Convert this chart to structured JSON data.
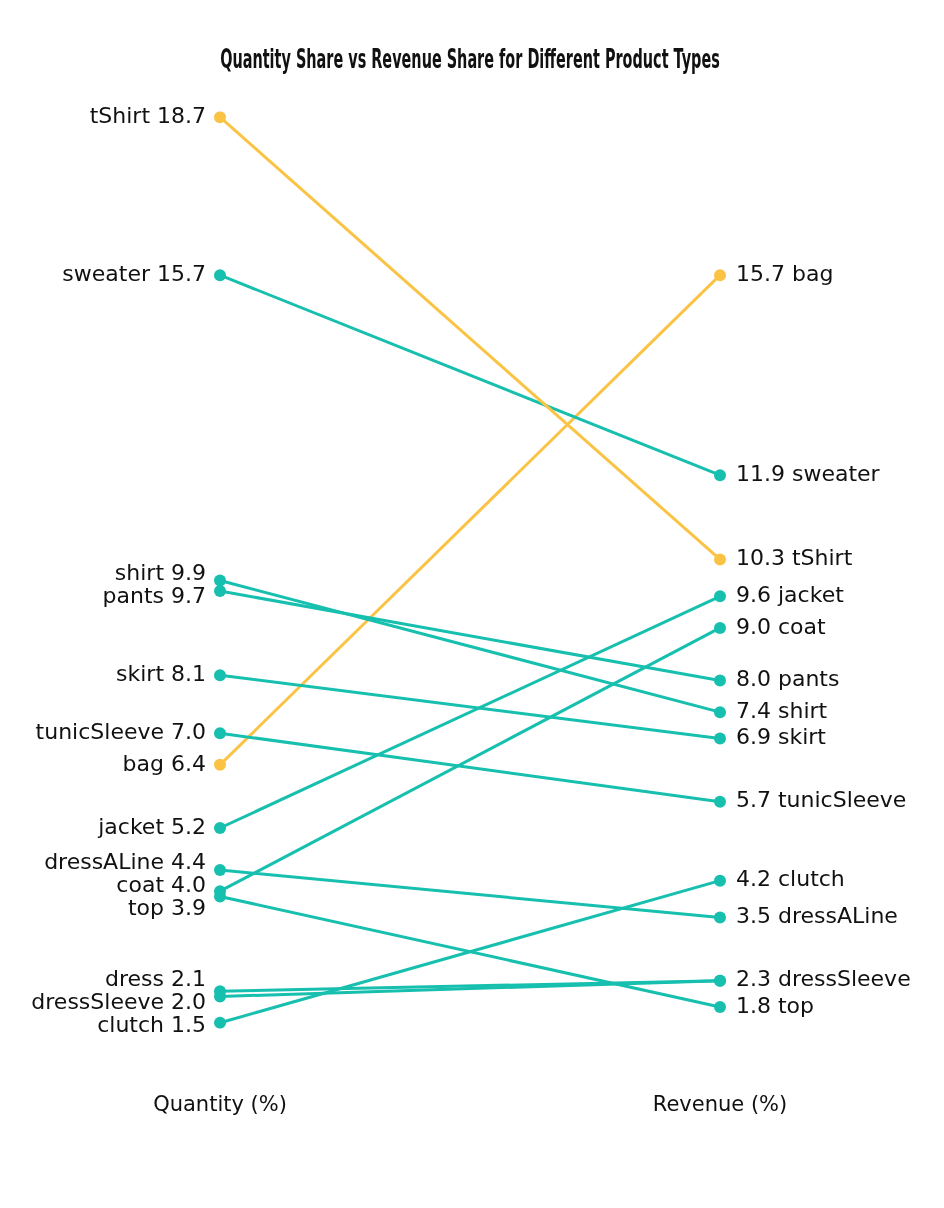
{
  "chart_data": {
    "type": "line",
    "title": "Quantity Share vs Revenue Share for Different Product Types",
    "categories": [
      "Quantity (%)",
      "Revenue (%)"
    ],
    "marker": "circle",
    "legend": false,
    "grid": false,
    "tick_labels": "x",
    "series": [
      {
        "name": "tShirt",
        "color": "#fbc343",
        "values": [
          18.7,
          10.3
        ],
        "value_labels": [
          "18.7",
          "10.3"
        ]
      },
      {
        "name": "sweater",
        "color": "#17bfae",
        "values": [
          15.7,
          11.9
        ],
        "value_labels": [
          "15.7",
          "11.9"
        ]
      },
      {
        "name": "shirt",
        "color": "#17bfae",
        "values": [
          9.9,
          7.4
        ],
        "value_labels": [
          "9.9",
          "7.4"
        ]
      },
      {
        "name": "pants",
        "color": "#17bfae",
        "values": [
          9.7,
          8.0
        ],
        "value_labels": [
          "9.7",
          "8.0"
        ]
      },
      {
        "name": "skirt",
        "color": "#17bfae",
        "values": [
          8.1,
          6.9
        ],
        "value_labels": [
          "8.1",
          "6.9"
        ]
      },
      {
        "name": "tunicSleeve",
        "color": "#17bfae",
        "values": [
          7.0,
          5.7
        ],
        "value_labels": [
          "7.0",
          "5.7"
        ]
      },
      {
        "name": "bag",
        "color": "#fbc343",
        "values": [
          6.4,
          15.7
        ],
        "value_labels": [
          "6.4",
          "15.7"
        ]
      },
      {
        "name": "jacket",
        "color": "#17bfae",
        "values": [
          5.2,
          9.6
        ],
        "value_labels": [
          "5.2",
          "9.6"
        ]
      },
      {
        "name": "dressALine",
        "color": "#17bfae",
        "values": [
          4.4,
          3.5
        ],
        "value_labels": [
          "4.4",
          "3.5"
        ]
      },
      {
        "name": "coat",
        "color": "#17bfae",
        "values": [
          4.0,
          9.0
        ],
        "value_labels": [
          "4.0",
          "9.0"
        ]
      },
      {
        "name": "top",
        "color": "#17bfae",
        "values": [
          3.9,
          1.8
        ],
        "value_labels": [
          "3.9",
          "1.8"
        ]
      },
      {
        "name": "dress",
        "color": "#17bfae",
        "values": [
          2.1,
          2.3
        ],
        "value_labels": [
          "2.1",
          null
        ]
      },
      {
        "name": "dressSleeve",
        "color": "#17bfae",
        "values": [
          2.0,
          2.3
        ],
        "value_labels": [
          "2.0",
          "2.3"
        ]
      },
      {
        "name": "clutch",
        "color": "#17bfae",
        "values": [
          1.5,
          4.2
        ],
        "value_labels": [
          "1.5",
          "4.2"
        ]
      }
    ]
  }
}
